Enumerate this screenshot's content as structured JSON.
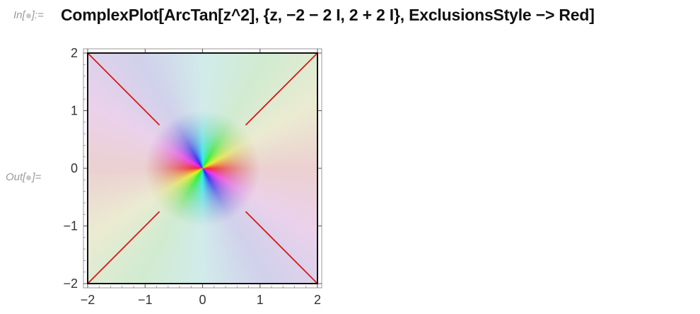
{
  "cell": {
    "input_label_prefix": "In[",
    "input_label_suffix": "]:=",
    "output_label_prefix": "Out[",
    "output_label_suffix": "]=",
    "input_code": "ComplexPlot[ArcTan[z^2], {z, −2 − 2 I, 2 + 2 I}, ExclusionsStyle −> Red]"
  },
  "colors": {
    "exclusion": "#d41a1a",
    "frame": "#111111",
    "tick": "#333333"
  },
  "chart_data": {
    "type": "heatmap",
    "function": "ArcTan[z^2]",
    "xlim": [
      -2,
      2
    ],
    "ylim": [
      -2,
      2
    ],
    "x_ticks": [
      "−2",
      "−1",
      "0",
      "1",
      "2"
    ],
    "y_ticks": [
      "2",
      "1",
      "0",
      "−1",
      "−2"
    ],
    "x_tick_values": [
      -2,
      -1,
      0,
      1,
      2
    ],
    "y_tick_values": [
      2,
      1,
      0,
      -1,
      -2
    ],
    "coloring": "argument hue, magnitude shading",
    "exclusion_lines": [
      {
        "from": [
          -2,
          2
        ],
        "to": [
          -0.75,
          0.75
        ]
      },
      {
        "from": [
          2,
          2
        ],
        "to": [
          0.75,
          0.75
        ]
      },
      {
        "from": [
          -2,
          -2
        ],
        "to": [
          -0.75,
          -0.75
        ]
      },
      {
        "from": [
          2,
          -2
        ],
        "to": [
          0.75,
          -0.75
        ]
      }
    ]
  }
}
